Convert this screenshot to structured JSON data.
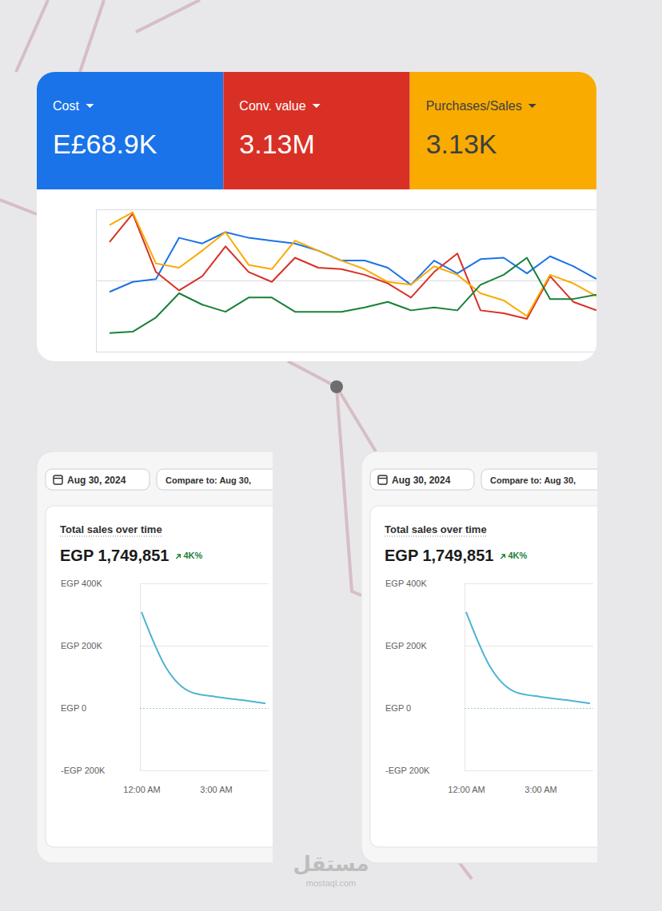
{
  "chart_data": [
    {
      "type": "line",
      "categories": [
        null,
        null,
        null,
        null,
        null,
        null,
        null,
        null,
        null,
        null,
        null,
        null,
        null,
        null,
        null,
        null,
        null,
        null,
        null,
        null,
        null,
        null
      ],
      "series": [
        {
          "name": "Cost",
          "headline": "E£68.9K",
          "color": "#1a73e8",
          "values": [
            42,
            49,
            51,
            80,
            76,
            84,
            80,
            78,
            76,
            71,
            64,
            64,
            59,
            47,
            64,
            55,
            65,
            66,
            55,
            67,
            60,
            51
          ]
        },
        {
          "name": "Conv. value",
          "headline": "3.13M",
          "color": "#d93025",
          "values": [
            77,
            97,
            56,
            43,
            53,
            74,
            56,
            49,
            66,
            59,
            58,
            54,
            48,
            38,
            56,
            69,
            29,
            27,
            23,
            53,
            35,
            29
          ]
        },
        {
          "name": "Purchases/Sales",
          "headline": "3.13K",
          "color": "#f9ab00",
          "values": [
            89,
            98,
            62,
            59,
            71,
            84,
            61,
            58,
            78,
            71,
            64,
            58,
            49,
            47,
            60,
            54,
            41,
            36,
            25,
            54,
            48,
            39
          ]
        },
        {
          "color": "#188038",
          "values": [
            13,
            14,
            24,
            41,
            33,
            28,
            38,
            38,
            28,
            28,
            28,
            31,
            35,
            29,
            31,
            29,
            47,
            54,
            66,
            37,
            37,
            40
          ]
        }
      ],
      "ylim": [
        0,
        100
      ],
      "yticks": [
        0,
        50,
        100
      ],
      "grid": true,
      "tick_labels": false
    },
    {
      "type": "line",
      "date": "Aug 30, 2024",
      "compare": "Compare to: Aug 30,",
      "title": "Total sales over time",
      "total": "EGP 1,749,851",
      "change": "4K%",
      "categories": [
        "12:00 AM",
        null,
        null,
        "3:00 AM",
        null,
        null
      ],
      "values": [
        308000,
        128000,
        51000,
        36000,
        26000,
        15000
      ],
      "color": "#4fb3d4",
      "ylim": [
        -200000,
        400000
      ],
      "yticks": [
        {
          "value": -200000,
          "label": "-EGP 200K"
        },
        {
          "value": 0,
          "label": "EGP 0"
        },
        {
          "value": 200000,
          "label": "EGP 200K"
        },
        {
          "value": 400000,
          "label": "EGP 400K"
        }
      ],
      "grid": true
    },
    {
      "type": "line",
      "date": "Aug 30, 2024",
      "compare": "Compare to: Aug 30,",
      "title": "Total sales over time",
      "total": "EGP 1,749,851",
      "change": "4K%",
      "categories": [
        "12:00 AM",
        null,
        null,
        "3:00 AM",
        null,
        null
      ],
      "values": [
        308000,
        128000,
        51000,
        36000,
        26000,
        15000
      ],
      "color": "#4fb3d4",
      "ylim": [
        -200000,
        400000
      ],
      "yticks": [
        {
          "value": -200000,
          "label": "-EGP 200K"
        },
        {
          "value": 0,
          "label": "EGP 0"
        },
        {
          "value": 200000,
          "label": "EGP 200K"
        },
        {
          "value": 400000,
          "label": "EGP 400K"
        }
      ],
      "grid": true
    }
  ],
  "watermark": {
    "arabic": "مستقل",
    "latin": "mostaql.com"
  }
}
